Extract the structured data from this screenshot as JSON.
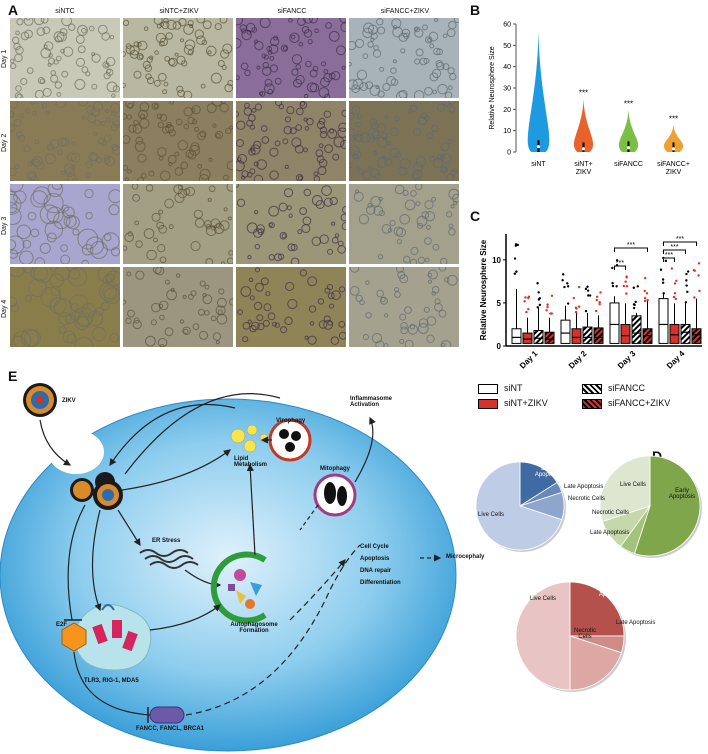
{
  "panel_labels": {
    "a": "A",
    "b": "B",
    "c": "C",
    "d": "D",
    "e": "E"
  },
  "panel_a": {
    "columns": [
      "siNTC",
      "siNTC+ZIKV",
      "siFANCC",
      "siFANCC+ZIKV"
    ],
    "rows": [
      "Day 1",
      "Day 2",
      "Day 3",
      "Day 4"
    ]
  },
  "chart_data": [
    {
      "type": "violin",
      "panel": "B",
      "ylabel": "Relative Neurosphere Size",
      "ylim": [
        0,
        60
      ],
      "yticks": [
        "0",
        "10",
        "20",
        "30",
        "40",
        "50",
        "60"
      ],
      "categories": [
        "siNT",
        "siNT+ ZIKV",
        "siFANCC",
        "siFANCC+ ZIKV"
      ],
      "category_lines": [
        [
          "siNT"
        ],
        [
          "siNT+",
          "ZIKV"
        ],
        [
          "siFANCC"
        ],
        [
          "siFANCC+",
          "ZIKV"
        ]
      ],
      "max_values": [
        57,
        25,
        20,
        13
      ],
      "medians": [
        2.5,
        1.5,
        2.0,
        1.5
      ],
      "colors": [
        "#1e9be0",
        "#e8622c",
        "#79c043",
        "#f0a030"
      ],
      "significance": [
        "",
        "***",
        "***",
        "***"
      ]
    },
    {
      "type": "box",
      "panel": "C",
      "ylabel": "Relative Neurosphere Size",
      "ylim": [
        0,
        13
      ],
      "yticks": [
        "0",
        "5",
        "10"
      ],
      "categories": [
        "Day 1",
        "Day 2",
        "Day 3",
        "Day 4"
      ],
      "series": [
        {
          "name": "siNT",
          "medians": [
            1.0,
            1.5,
            2.5,
            2.5
          ],
          "q3": [
            2.0,
            3.0,
            5.0,
            5.5
          ],
          "max": [
            12,
            8.5,
            10.5,
            11
          ]
        },
        {
          "name": "siNT+ZIKV",
          "medians": [
            0.8,
            1.0,
            1.2,
            1.3
          ],
          "q3": [
            1.5,
            2.0,
            2.5,
            2.5
          ],
          "max": [
            6,
            7,
            9,
            9
          ]
        },
        {
          "name": "siFANCC",
          "medians": [
            0.9,
            1.0,
            1.5,
            1.6
          ],
          "q3": [
            1.8,
            2.2,
            3.5,
            2.5
          ],
          "max": [
            8,
            7,
            7,
            9
          ]
        },
        {
          "name": "siFANCC+ZIKV",
          "medians": [
            0.8,
            1.0,
            1.2,
            1.3
          ],
          "q3": [
            1.6,
            2.1,
            2.0,
            2.0
          ],
          "max": [
            6,
            6.5,
            9.5,
            10
          ]
        }
      ],
      "significance": [
        {
          "day": "Day 3",
          "label": "***"
        },
        {
          "day": "Day 3",
          "label": "***"
        },
        {
          "day": "Day 4",
          "label": "***"
        },
        {
          "day": "Day 4",
          "label": "***"
        },
        {
          "day": "Day 4",
          "label": "***"
        }
      ],
      "legend": [
        "siNT",
        "siFANCC",
        "siNT+ZIKV",
        "siFANCC+ZIKV"
      ]
    },
    {
      "type": "pie",
      "panel": "D",
      "pies": [
        {
          "labels": [
            "Live Cells",
            "Early Apoptosis",
            "Late Apoptosis",
            "Necrotic Cells"
          ],
          "values": [
            70,
            16,
            4,
            10
          ],
          "colors": [
            "#bfcce5",
            "#3f6aa3",
            "#6688bb",
            "#8fa6cc"
          ]
        },
        {
          "labels": [
            "Live Cells",
            "Early Apoptosis",
            "Late Apoptosis",
            "Necrotic Cells"
          ],
          "values": [
            30,
            55,
            5,
            10
          ],
          "colors": [
            "#dde6cf",
            "#7fa64b",
            "#a5c27c",
            "#c5d8aa"
          ]
        },
        {
          "labels": [
            "Live Cells",
            "Early Apoptosis",
            "Late Apoptosis",
            "Necrotic Cells"
          ],
          "values": [
            50,
            25,
            5,
            20
          ],
          "colors": [
            "#e8c4c4",
            "#b5514c",
            "#cf8b86",
            "#dda8a4"
          ]
        }
      ],
      "label_text": {
        "early": "Early Apoptosis",
        "late": "Late Apoptosis",
        "necrotic": "Necrotic Cells",
        "live": "Live Cells"
      }
    }
  ],
  "panel_e": {
    "zikv": "ZIKV",
    "inflammasome": "Inflammasome Activation",
    "virophagy": "Virophagy",
    "mitophagy": "Mitophagy",
    "lipid": "Lipid Metabolism",
    "er_stress": "ER Stress",
    "autophagosome": "Autophagosome Formation",
    "cell_cycle": "Cell Cycle",
    "apoptosis": "Apoptosis",
    "dna_repair": "DNA repair",
    "differentiation": "Differentiation",
    "microcephaly": "Microcephaly",
    "e2f": "E2F",
    "tlr": "TLR3, RIG-1, MDA5",
    "fanc": "FANCC, FANCL, BRCA1"
  }
}
